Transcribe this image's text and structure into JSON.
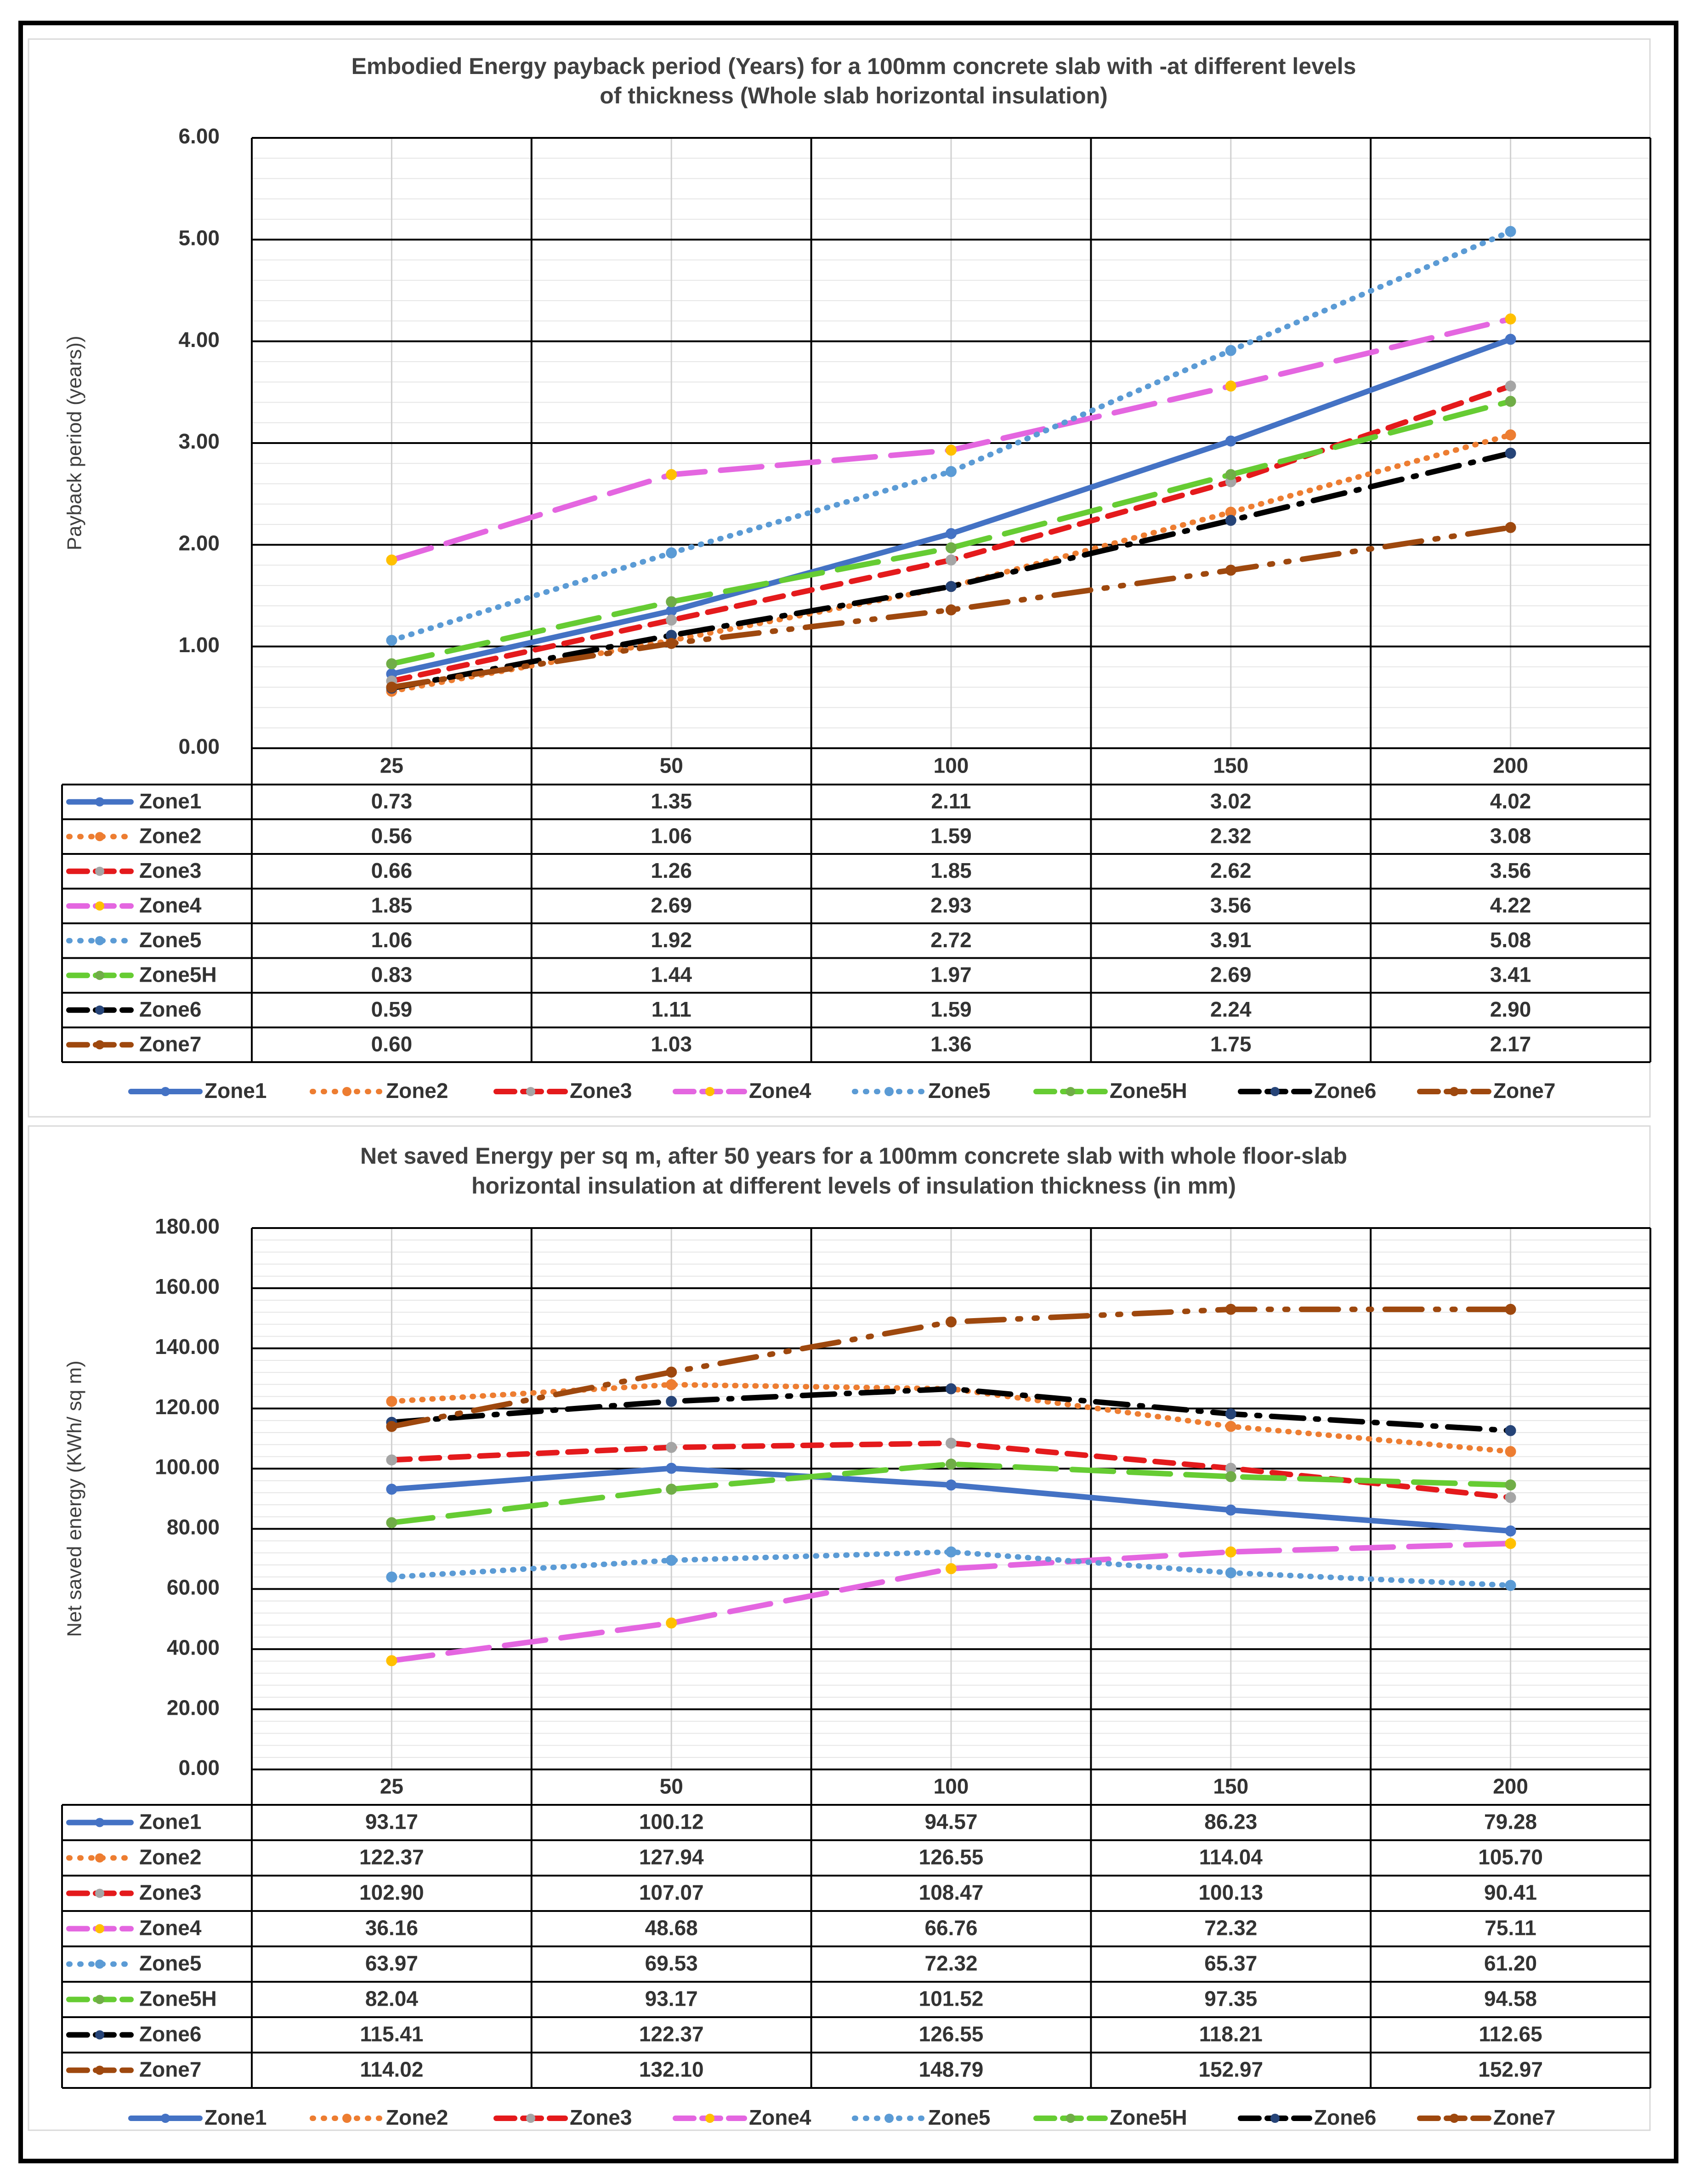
{
  "colors": {
    "Zone1": "#4472c4",
    "Zone2": "#ed7d31",
    "Zone3": "#e41a1c",
    "Zone4": "#e466e0",
    "Zone5": "#5b9bd5",
    "Zone5H": "#66cc33",
    "Zone6": "#000000",
    "Zone7": "#9e480e"
  },
  "chart_data": [
    {
      "type": "line",
      "title_lines": [
        "Embodied Energy payback period (Years) for a 100mm concrete slab with -at different levels",
        "of thickness  (Whole slab horizontal insulation)"
      ],
      "ylabel": "Payback period (years))",
      "xlabel": "",
      "categories": [
        "25",
        "50",
        "100",
        "150",
        "200"
      ],
      "ylim": [
        0,
        6
      ],
      "ytick_step": 1,
      "ytick_labels": [
        "0.00",
        "1.00",
        "2.00",
        "3.00",
        "4.00",
        "5.00",
        "6.00"
      ],
      "grid": true,
      "legend_position": "bottom",
      "has_data_table": true,
      "series": [
        {
          "name": "Zone1",
          "style": "solid",
          "marker_color": "#4472c4",
          "values": [
            0.73,
            1.35,
            2.11,
            3.02,
            4.02
          ],
          "labels": [
            "0.73",
            "1.35",
            "2.11",
            "3.02",
            "4.02"
          ]
        },
        {
          "name": "Zone2",
          "style": "dot",
          "marker_color": "#ed7d31",
          "values": [
            0.56,
            1.06,
            1.59,
            2.32,
            3.08
          ],
          "labels": [
            "0.56",
            "1.06",
            "1.59",
            "2.32",
            "3.08"
          ]
        },
        {
          "name": "Zone3",
          "style": "dash",
          "marker_color": "#a5a5a5",
          "values": [
            0.66,
            1.26,
            1.85,
            2.62,
            3.56
          ],
          "labels": [
            "0.66",
            "1.26",
            "1.85",
            "2.62",
            "3.56"
          ]
        },
        {
          "name": "Zone4",
          "style": "longdash",
          "marker_color": "#ffc000",
          "values": [
            1.85,
            2.69,
            2.93,
            3.56,
            4.22
          ],
          "labels": [
            "1.85",
            "2.69",
            "2.93",
            "3.56",
            "4.22"
          ]
        },
        {
          "name": "Zone5",
          "style": "dot",
          "marker_color": "#5b9bd5",
          "values": [
            1.06,
            1.92,
            2.72,
            3.91,
            5.08
          ],
          "labels": [
            "1.06",
            "1.92",
            "2.72",
            "3.91",
            "5.08"
          ]
        },
        {
          "name": "Zone5H",
          "style": "longdash",
          "marker_color": "#70ad47",
          "values": [
            0.83,
            1.44,
            1.97,
            2.69,
            3.41
          ],
          "labels": [
            "0.83",
            "1.44",
            "1.97",
            "2.69",
            "3.41"
          ]
        },
        {
          "name": "Zone6",
          "style": "dashdot",
          "marker_color": "#264478",
          "values": [
            0.59,
            1.11,
            1.59,
            2.24,
            2.9
          ],
          "labels": [
            "0.59",
            "1.11",
            "1.59",
            "2.24",
            "2.90"
          ]
        },
        {
          "name": "Zone7",
          "style": "longdashdot",
          "marker_color": "#9e480e",
          "values": [
            0.6,
            1.03,
            1.36,
            1.75,
            2.17
          ],
          "labels": [
            "0.60",
            "1.03",
            "1.36",
            "1.75",
            "2.17"
          ]
        }
      ]
    },
    {
      "type": "line",
      "title_lines": [
        "Net saved Energy per sq m, after 50 years for a 100mm concrete slab with  whole floor-slab",
        "horizontal insulation at different levels of insulation thickness (in mm)"
      ],
      "ylabel": "Net saved energy (KWh/ sq m)",
      "xlabel": "",
      "categories": [
        "25",
        "50",
        "100",
        "150",
        "200"
      ],
      "ylim": [
        0,
        180
      ],
      "ytick_step": 20,
      "ytick_labels": [
        "0.00",
        "20.00",
        "40.00",
        "60.00",
        "80.00",
        "100.00",
        "120.00",
        "140.00",
        "160.00",
        "180.00"
      ],
      "grid": true,
      "legend_position": "bottom",
      "has_data_table": true,
      "series": [
        {
          "name": "Zone1",
          "style": "solid",
          "marker_color": "#4472c4",
          "values": [
            93.17,
            100.12,
            94.57,
            86.23,
            79.28
          ],
          "labels": [
            "93.17",
            "100.12",
            "94.57",
            "86.23",
            "79.28"
          ]
        },
        {
          "name": "Zone2",
          "style": "dot",
          "marker_color": "#ed7d31",
          "values": [
            122.37,
            127.94,
            126.55,
            114.04,
            105.7
          ],
          "labels": [
            "122.37",
            "127.94",
            "126.55",
            "114.04",
            "105.70"
          ]
        },
        {
          "name": "Zone3",
          "style": "dash",
          "marker_color": "#a5a5a5",
          "values": [
            102.9,
            107.07,
            108.47,
            100.13,
            90.41
          ],
          "labels": [
            "102.90",
            "107.07",
            "108.47",
            "100.13",
            "90.41"
          ]
        },
        {
          "name": "Zone4",
          "style": "longdash",
          "marker_color": "#ffc000",
          "values": [
            36.16,
            48.68,
            66.76,
            72.32,
            75.11
          ],
          "labels": [
            "36.16",
            "48.68",
            "66.76",
            "72.32",
            "75.11"
          ]
        },
        {
          "name": "Zone5",
          "style": "dot",
          "marker_color": "#5b9bd5",
          "values": [
            63.97,
            69.53,
            72.32,
            65.37,
            61.2
          ],
          "labels": [
            "63.97",
            "69.53",
            "72.32",
            "65.37",
            "61.20"
          ]
        },
        {
          "name": "Zone5H",
          "style": "longdash",
          "marker_color": "#70ad47",
          "values": [
            82.04,
            93.17,
            101.52,
            97.35,
            94.58
          ],
          "labels": [
            "82.04",
            "93.17",
            "101.52",
            "97.35",
            "94.58"
          ]
        },
        {
          "name": "Zone6",
          "style": "dashdot",
          "marker_color": "#264478",
          "values": [
            115.41,
            122.37,
            126.55,
            118.21,
            112.65
          ],
          "labels": [
            "115.41",
            "122.37",
            "126.55",
            "118.21",
            "112.65"
          ]
        },
        {
          "name": "Zone7",
          "style": "longdashdot",
          "marker_color": "#9e480e",
          "values": [
            114.02,
            132.1,
            148.79,
            152.97,
            152.97
          ],
          "labels": [
            "114.02",
            "132.10",
            "148.79",
            "152.97",
            "152.97"
          ]
        }
      ]
    }
  ]
}
